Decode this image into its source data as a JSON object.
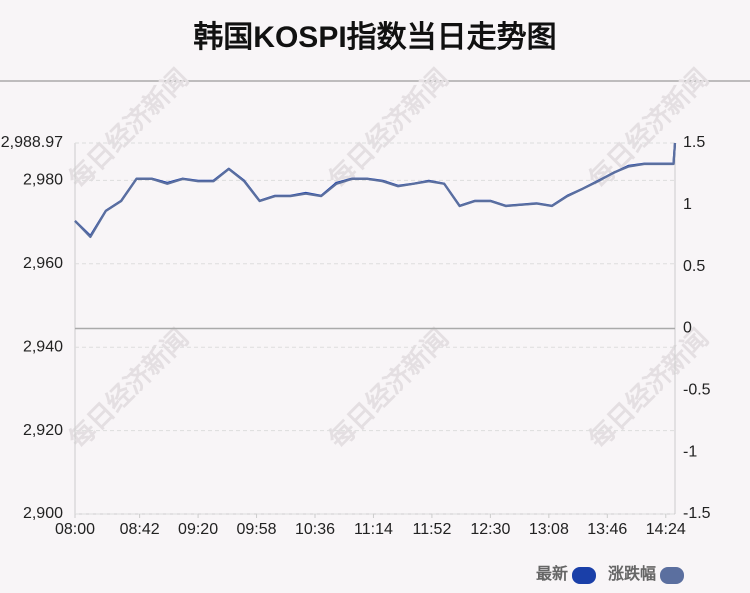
{
  "chart_data": {
    "type": "line",
    "title": "韩国KOSPI指数当日走势图",
    "watermark": "每日经济新闻",
    "x": [
      "08:00",
      "08:10",
      "08:20",
      "08:30",
      "08:40",
      "08:50",
      "09:00",
      "09:10",
      "09:20",
      "09:30",
      "09:40",
      "09:50",
      "10:00",
      "10:10",
      "10:20",
      "10:30",
      "10:40",
      "10:50",
      "11:00",
      "11:10",
      "11:20",
      "11:30",
      "11:40",
      "11:50",
      "12:00",
      "12:10",
      "12:20",
      "12:30",
      "12:40",
      "12:50",
      "13:00",
      "13:10",
      "13:20",
      "13:30",
      "13:40",
      "13:50",
      "14:00",
      "14:10",
      "14:20",
      "14:29",
      "14:30"
    ],
    "xlim": [
      "08:00",
      "14:30"
    ],
    "xticks": [
      "08:00",
      "08:42",
      "09:20",
      "09:58",
      "10:36",
      "11:14",
      "11:52",
      "12:30",
      "13:08",
      "13:46",
      "14:24"
    ],
    "ylim": [
      2900,
      2988.97
    ],
    "yticks": [
      {
        "value": 2900,
        "label": "2,900"
      },
      {
        "value": 2920,
        "label": "2,920"
      },
      {
        "value": 2940,
        "label": "2,940"
      },
      {
        "value": 2960,
        "label": "2,960"
      },
      {
        "value": 2980,
        "label": "2,980"
      },
      {
        "value": 2988.97,
        "label": "2,988.97"
      }
    ],
    "y2lim": [
      -1.5,
      1.5
    ],
    "y2ticks": [
      1.5,
      1,
      0.5,
      0,
      -0.5,
      -1,
      -1.5
    ],
    "grid": true,
    "legend": "bottom-right",
    "series": [
      {
        "name": "最新",
        "color": "#1a3fa8",
        "values": [
          2970.3,
          2966.7,
          2972.7,
          2975.1,
          2980.4,
          2980.4,
          2979.4,
          2980.4,
          2979.9,
          2979.9,
          2982.8,
          2979.9,
          2975.1,
          2976.3,
          2976.3,
          2977.0,
          2976.3,
          2979.4,
          2980.4,
          2980.4,
          2979.9,
          2978.7,
          2979.2,
          2979.9,
          2979.2,
          2973.9,
          2975.1,
          2975.1,
          2973.9,
          2974.2,
          2974.5,
          2973.9,
          2976.3,
          2978.0,
          2979.9,
          2981.8,
          2983.5,
          2984.0,
          2984.0,
          2984.0,
          2988.97
        ]
      },
      {
        "name": "涨跌幅",
        "color": "#5b6f9f",
        "axis": "y2",
        "values": [
          0.87,
          0.74,
          0.95,
          1.03,
          1.21,
          1.21,
          1.17,
          1.21,
          1.19,
          1.19,
          1.29,
          1.19,
          1.03,
          1.07,
          1.07,
          1.09,
          1.07,
          1.17,
          1.21,
          1.21,
          1.19,
          1.15,
          1.17,
          1.19,
          1.17,
          0.99,
          1.03,
          1.03,
          0.99,
          1.0,
          1.01,
          0.99,
          1.07,
          1.13,
          1.19,
          1.26,
          1.31,
          1.33,
          1.33,
          1.33,
          1.5
        ]
      }
    ]
  }
}
